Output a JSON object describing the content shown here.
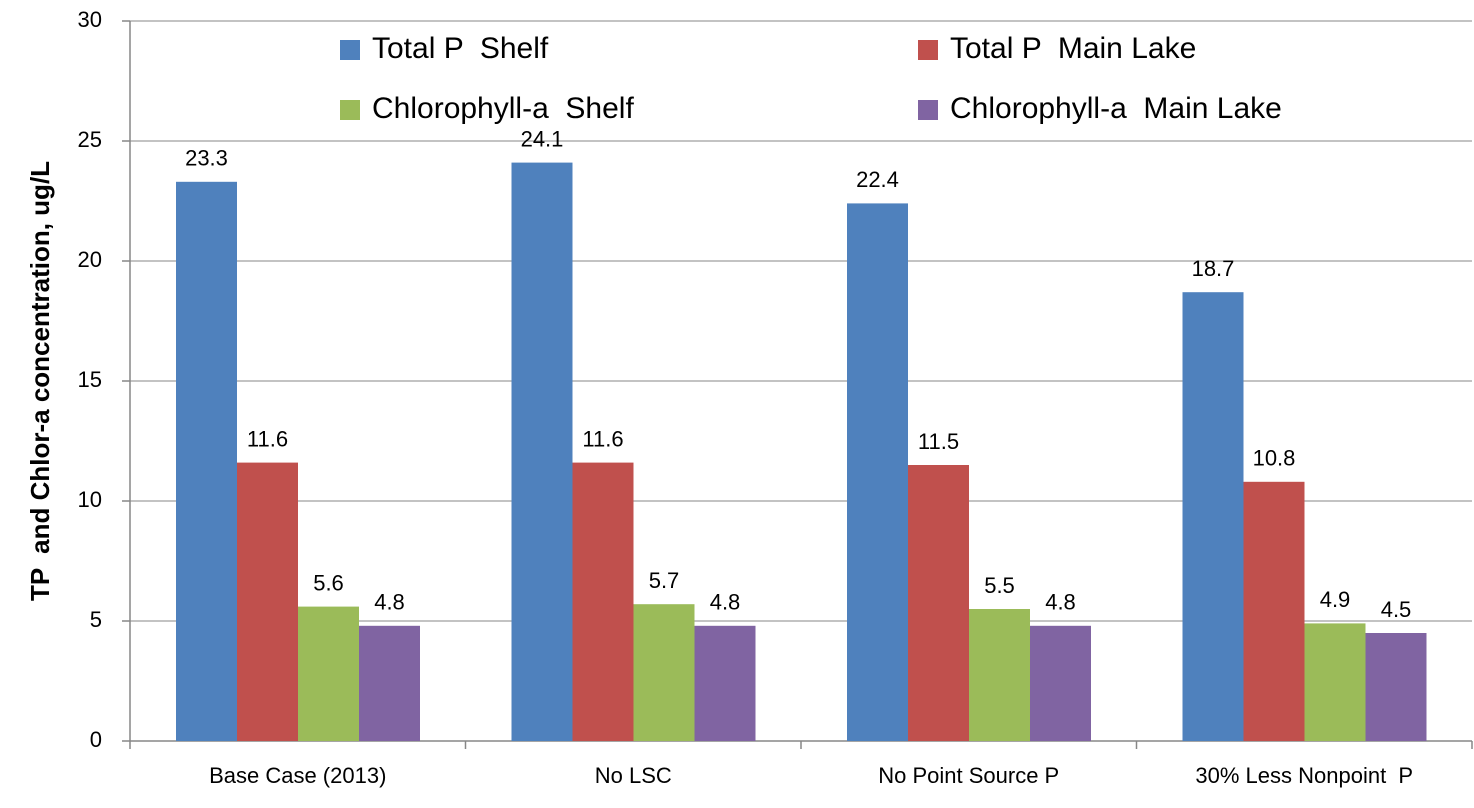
{
  "chart_data": {
    "type": "bar",
    "y_label": "TP  and Chlor-a concentration, ug/L",
    "categories": [
      "Base Case (2013)",
      "No LSC",
      "No Point Source P",
      "30% Less Nonpoint  P"
    ],
    "series": [
      {
        "name": "Total P  Shelf",
        "color": "#4f81bd",
        "values": [
          23.3,
          24.1,
          22.4,
          18.7
        ]
      },
      {
        "name": "Total P  Main Lake",
        "color": "#c0504d",
        "values": [
          11.6,
          11.6,
          11.5,
          10.8
        ]
      },
      {
        "name": "Chlorophyll-a  Shelf",
        "color": "#9bbb59",
        "values": [
          5.6,
          5.7,
          5.5,
          4.9
        ]
      },
      {
        "name": "Chlorophyll-a  Main Lake",
        "color": "#8064a2",
        "values": [
          4.8,
          4.8,
          4.8,
          4.5
        ]
      }
    ],
    "ylim": [
      0,
      30
    ],
    "yticks": [
      0,
      5,
      10,
      15,
      20,
      25,
      30
    ],
    "grid": true,
    "legend": "top"
  }
}
